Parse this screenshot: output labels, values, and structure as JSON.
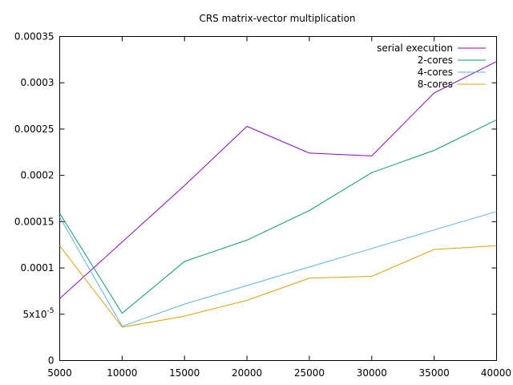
{
  "chart_data": {
    "type": "line",
    "title": "CRS matrix-vector multiplication",
    "xlabel": "",
    "ylabel": "",
    "x": [
      5000,
      10000,
      15000,
      20000,
      25000,
      30000,
      35000,
      40000
    ],
    "xlim": [
      5000,
      40000
    ],
    "ylim": [
      0,
      0.00035
    ],
    "x_ticks": [
      5000,
      10000,
      15000,
      20000,
      25000,
      30000,
      35000,
      40000
    ],
    "y_ticks": [
      {
        "value": 0,
        "label": "0"
      },
      {
        "value": 5e-05,
        "label": "5x10",
        "exponent": "-5"
      },
      {
        "value": 0.0001,
        "label": "0.0001"
      },
      {
        "value": 0.00015,
        "label": "0.00015"
      },
      {
        "value": 0.0002,
        "label": "0.0002"
      },
      {
        "value": 0.00025,
        "label": "0.00025"
      },
      {
        "value": 0.0003,
        "label": "0.0003"
      },
      {
        "value": 0.00035,
        "label": "0.00035"
      }
    ],
    "grid": false,
    "legend_position": "top-right",
    "series": [
      {
        "name": "serial execution",
        "color": "#9400d3",
        "values": [
          6.7e-05,
          0.000128,
          0.000189,
          0.000253,
          0.000224,
          0.000221,
          0.000289,
          0.000323
        ]
      },
      {
        "name": "2-cores",
        "color": "#009e73",
        "values": [
          0.000159,
          5.1e-05,
          0.000107,
          0.00013,
          0.000162,
          0.000203,
          0.000227,
          0.00026
        ]
      },
      {
        "name": "4-cores",
        "color": "#56b4e9",
        "values": [
          0.000155,
          3.7e-05,
          6.1e-05,
          8.1e-05,
          0.000101,
          0.000121,
          0.000141,
          0.000161
        ]
      },
      {
        "name": "8-cores",
        "color": "#e69f00",
        "values": [
          0.000124,
          3.6e-05,
          4.8e-05,
          6.5e-05,
          8.9e-05,
          9.1e-05,
          0.00012,
          0.000124
        ]
      }
    ]
  }
}
